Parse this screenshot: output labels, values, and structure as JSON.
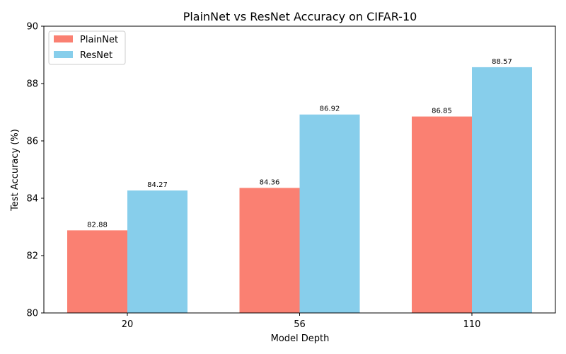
{
  "chart_data": {
    "type": "bar",
    "title": "PlainNet vs ResNet Accuracy on CIFAR-10",
    "xlabel": "Model Depth",
    "ylabel": "Test Accuracy (%)",
    "categories": [
      "20",
      "56",
      "110"
    ],
    "series": [
      {
        "name": "PlainNet",
        "color": "#fa8072",
        "values": [
          82.88,
          84.36,
          86.85
        ],
        "labels": [
          "82.88",
          "84.36",
          "86.85"
        ]
      },
      {
        "name": "ResNet",
        "color": "#87ceeb",
        "values": [
          84.27,
          86.92,
          88.57
        ],
        "labels": [
          "84.27",
          "86.92",
          "88.57"
        ]
      }
    ],
    "ylim": [
      80,
      90
    ],
    "yticks": [
      80,
      82,
      84,
      86,
      88,
      90
    ],
    "ytick_labels": [
      "80",
      "82",
      "84",
      "86",
      "88",
      "90"
    ],
    "grid": false,
    "legend_position": "top-left"
  }
}
